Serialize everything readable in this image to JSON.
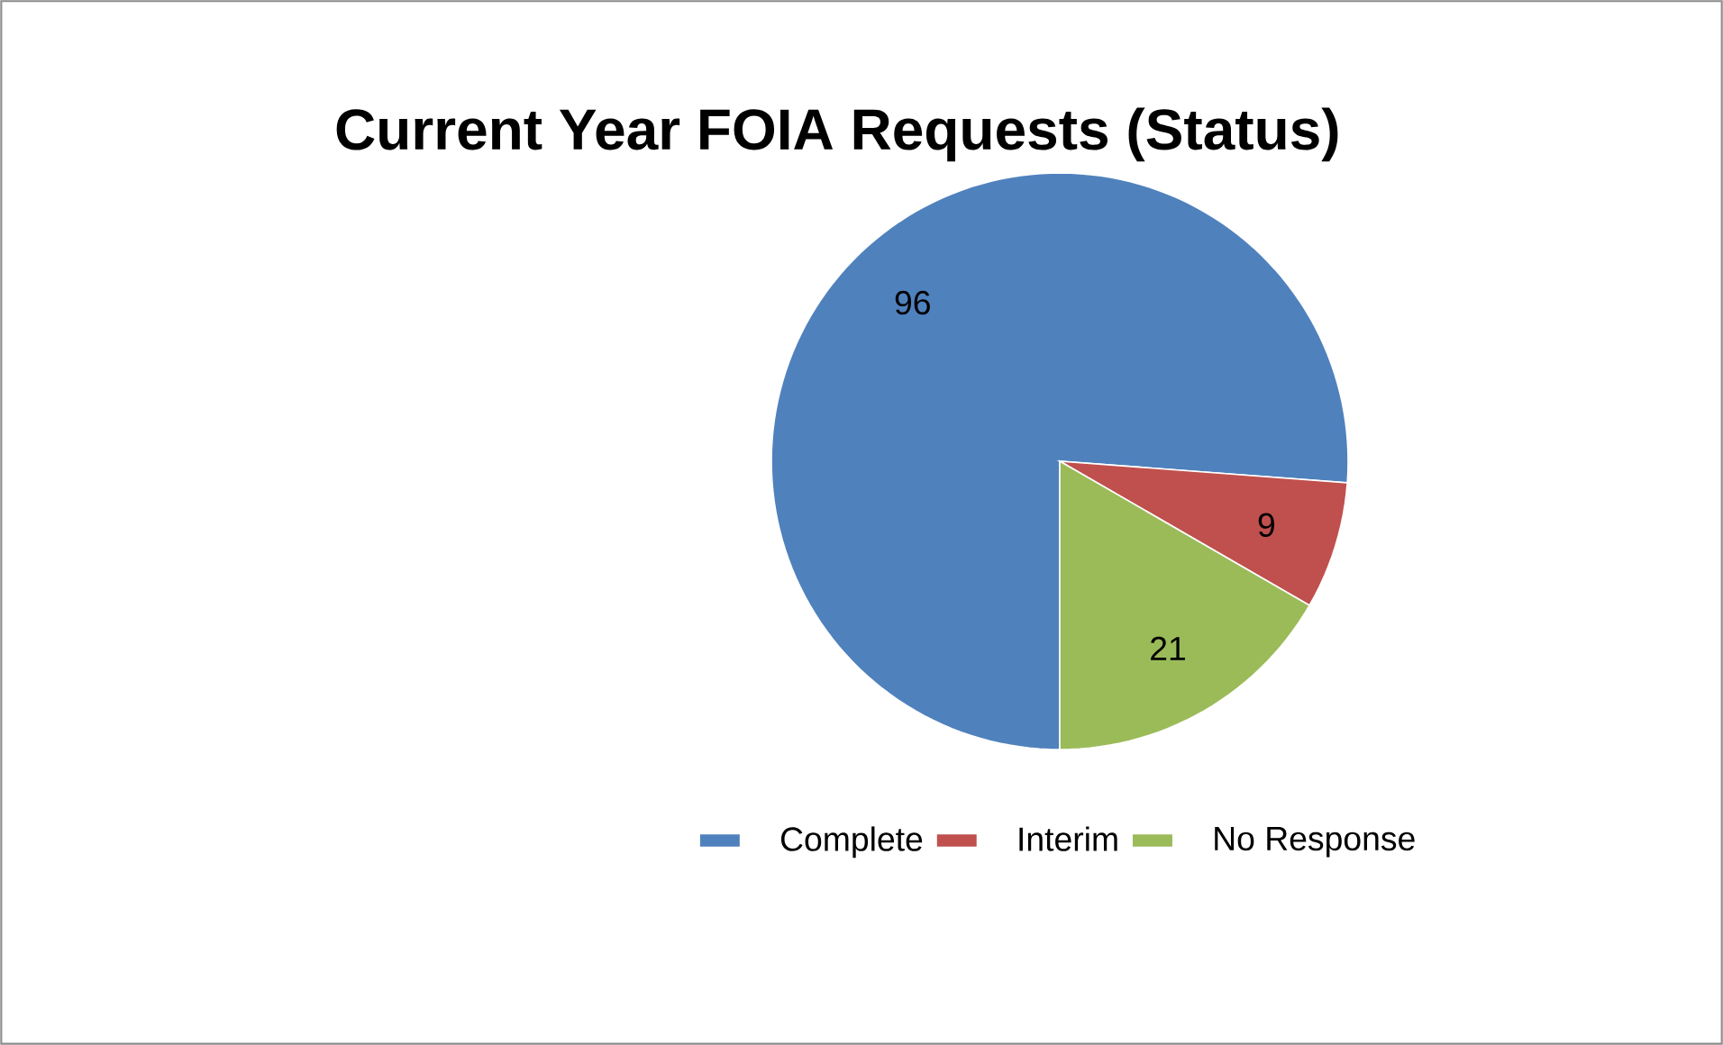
{
  "chart_data": {
    "type": "pie",
    "title": "Current Year FOIA Requests (Status)",
    "categories": [
      "Complete",
      "Interim",
      "No Response"
    ],
    "values": [
      96,
      9,
      21
    ],
    "colors": [
      "#4f81bd",
      "#c0504d",
      "#9bbb59"
    ],
    "data_labels": true,
    "legend": "bottom"
  }
}
